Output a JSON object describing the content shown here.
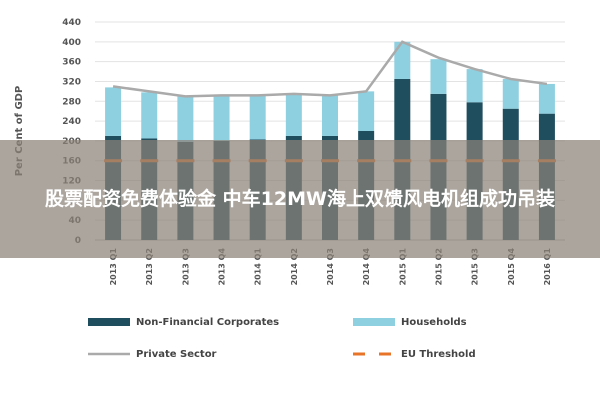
{
  "chart_data": {
    "type": "bar",
    "stacked": true,
    "ylabel": "Per Cent of GDP",
    "categories": [
      "2013 Q1",
      "2013 Q2",
      "2013 Q3",
      "2013 Q4",
      "2014 Q1",
      "2014 Q2",
      "2014 Q3",
      "2014 Q4",
      "2015 Q1",
      "2015 Q2",
      "2015 Q3",
      "2015 Q4",
      "2016 Q1"
    ],
    "series": [
      {
        "name": "Non-Financial Corporates",
        "type": "bar",
        "color": "#1f4e5f",
        "values": [
          210,
          205,
          198,
          200,
          203,
          210,
          210,
          220,
          325,
          295,
          278,
          265,
          255
        ]
      },
      {
        "name": "Households",
        "type": "bar",
        "color": "#8fd0e0",
        "values": [
          98,
          93,
          92,
          92,
          89,
          85,
          82,
          80,
          75,
          70,
          67,
          60,
          60
        ]
      },
      {
        "name": "Private Sector",
        "type": "line",
        "color": "#aaaaaa",
        "values": [
          310,
          300,
          290,
          292,
          292,
          295,
          292,
          300,
          400,
          368,
          345,
          325,
          315
        ]
      },
      {
        "name": "EU Threshold",
        "type": "dash",
        "color": "#e8742a",
        "values": [
          160,
          160,
          160,
          160,
          160,
          160,
          160,
          160,
          160,
          160,
          160,
          160,
          160
        ]
      }
    ],
    "ylim": [
      0,
      440
    ],
    "yticks": [
      0,
      40,
      80,
      120,
      160,
      200,
      240,
      280,
      320,
      360,
      400,
      440
    ],
    "grid": true,
    "overlay": "股票配资免费体验金 中车12MW海上双馈风电机组成功吊装"
  }
}
